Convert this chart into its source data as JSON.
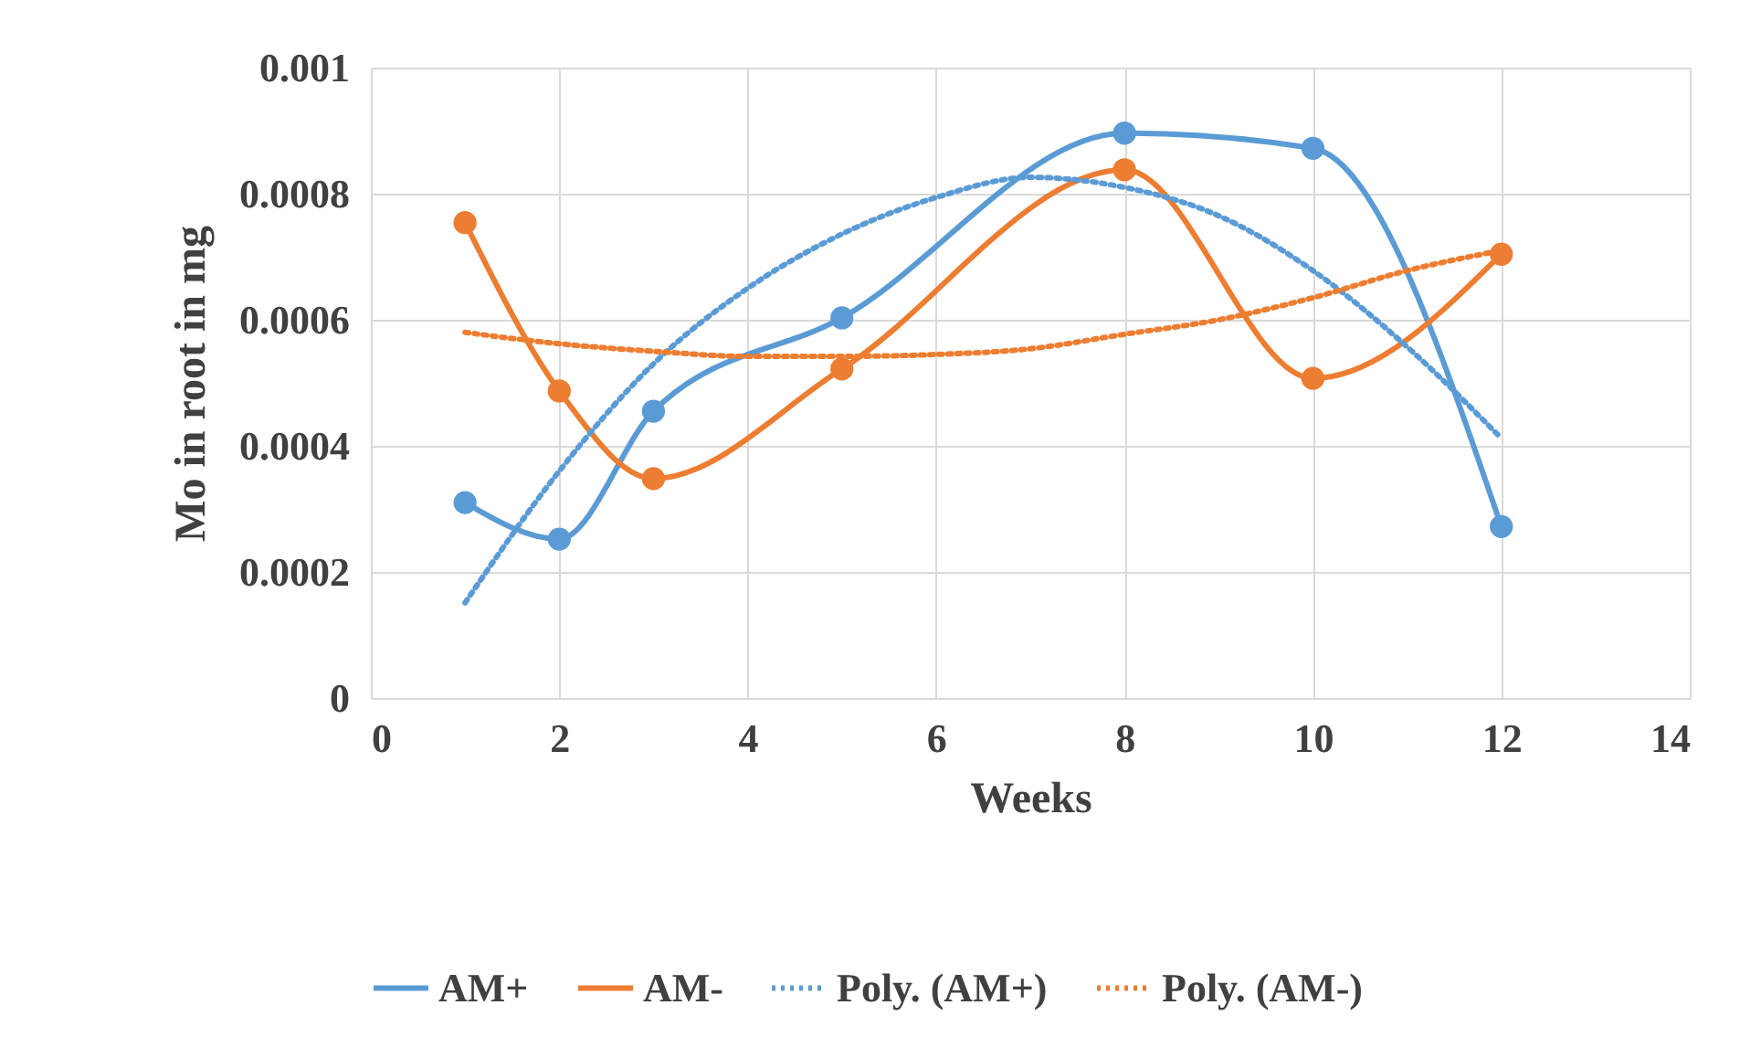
{
  "chart_data": {
    "type": "line",
    "xlabel": "Weeks",
    "ylabel": "Mo in root in mg",
    "xlim": [
      0,
      14
    ],
    "xticks": [
      0,
      2,
      4,
      6,
      8,
      10,
      12,
      14
    ],
    "ylim": [
      0,
      0.001
    ],
    "yticks": [
      0,
      0.0002,
      0.0004,
      0.0006,
      0.0008,
      0.001
    ],
    "grid": true,
    "legend": "bottom",
    "series": [
      {
        "name": "AM+",
        "color": "#5b9bd5",
        "marker": "circle",
        "line_style": "solid",
        "x": [
          1,
          2,
          3,
          5,
          8,
          10,
          12
        ],
        "values": [
          0.00031,
          0.000252,
          0.000455,
          0.000603,
          0.000896,
          0.000872,
          0.000272
        ]
      },
      {
        "name": "AM-",
        "color": "#ed7d31",
        "marker": "circle",
        "line_style": "solid",
        "x": [
          1,
          2,
          3,
          5,
          8,
          10,
          12
        ],
        "values": [
          0.000754,
          0.000487,
          0.000348,
          0.000522,
          0.000838,
          0.000507,
          0.000704
        ]
      },
      {
        "name": "Poly. (AM+)",
        "color": "#5b9bd5",
        "marker": "none",
        "line_style": "dotted",
        "x": [
          1,
          2,
          3,
          4,
          5,
          6,
          7,
          8,
          9,
          10,
          11,
          12
        ],
        "values": [
          0.000151,
          0.00036,
          0.00053,
          0.00065,
          0.000736,
          0.000794,
          0.000826,
          0.00081,
          0.000765,
          0.000678,
          0.000557,
          0.000412
        ]
      },
      {
        "name": "Poly. (AM-)",
        "color": "#ed7d31",
        "marker": "none",
        "line_style": "dotted",
        "x": [
          1,
          2,
          3,
          4,
          5,
          6,
          7,
          8,
          9,
          10,
          11,
          12
        ],
        "values": [
          0.00058,
          0.000562,
          0.00055,
          0.000542,
          0.000542,
          0.000545,
          0.000554,
          0.000577,
          0.0006,
          0.000635,
          0.000678,
          0.00071
        ]
      }
    ]
  }
}
